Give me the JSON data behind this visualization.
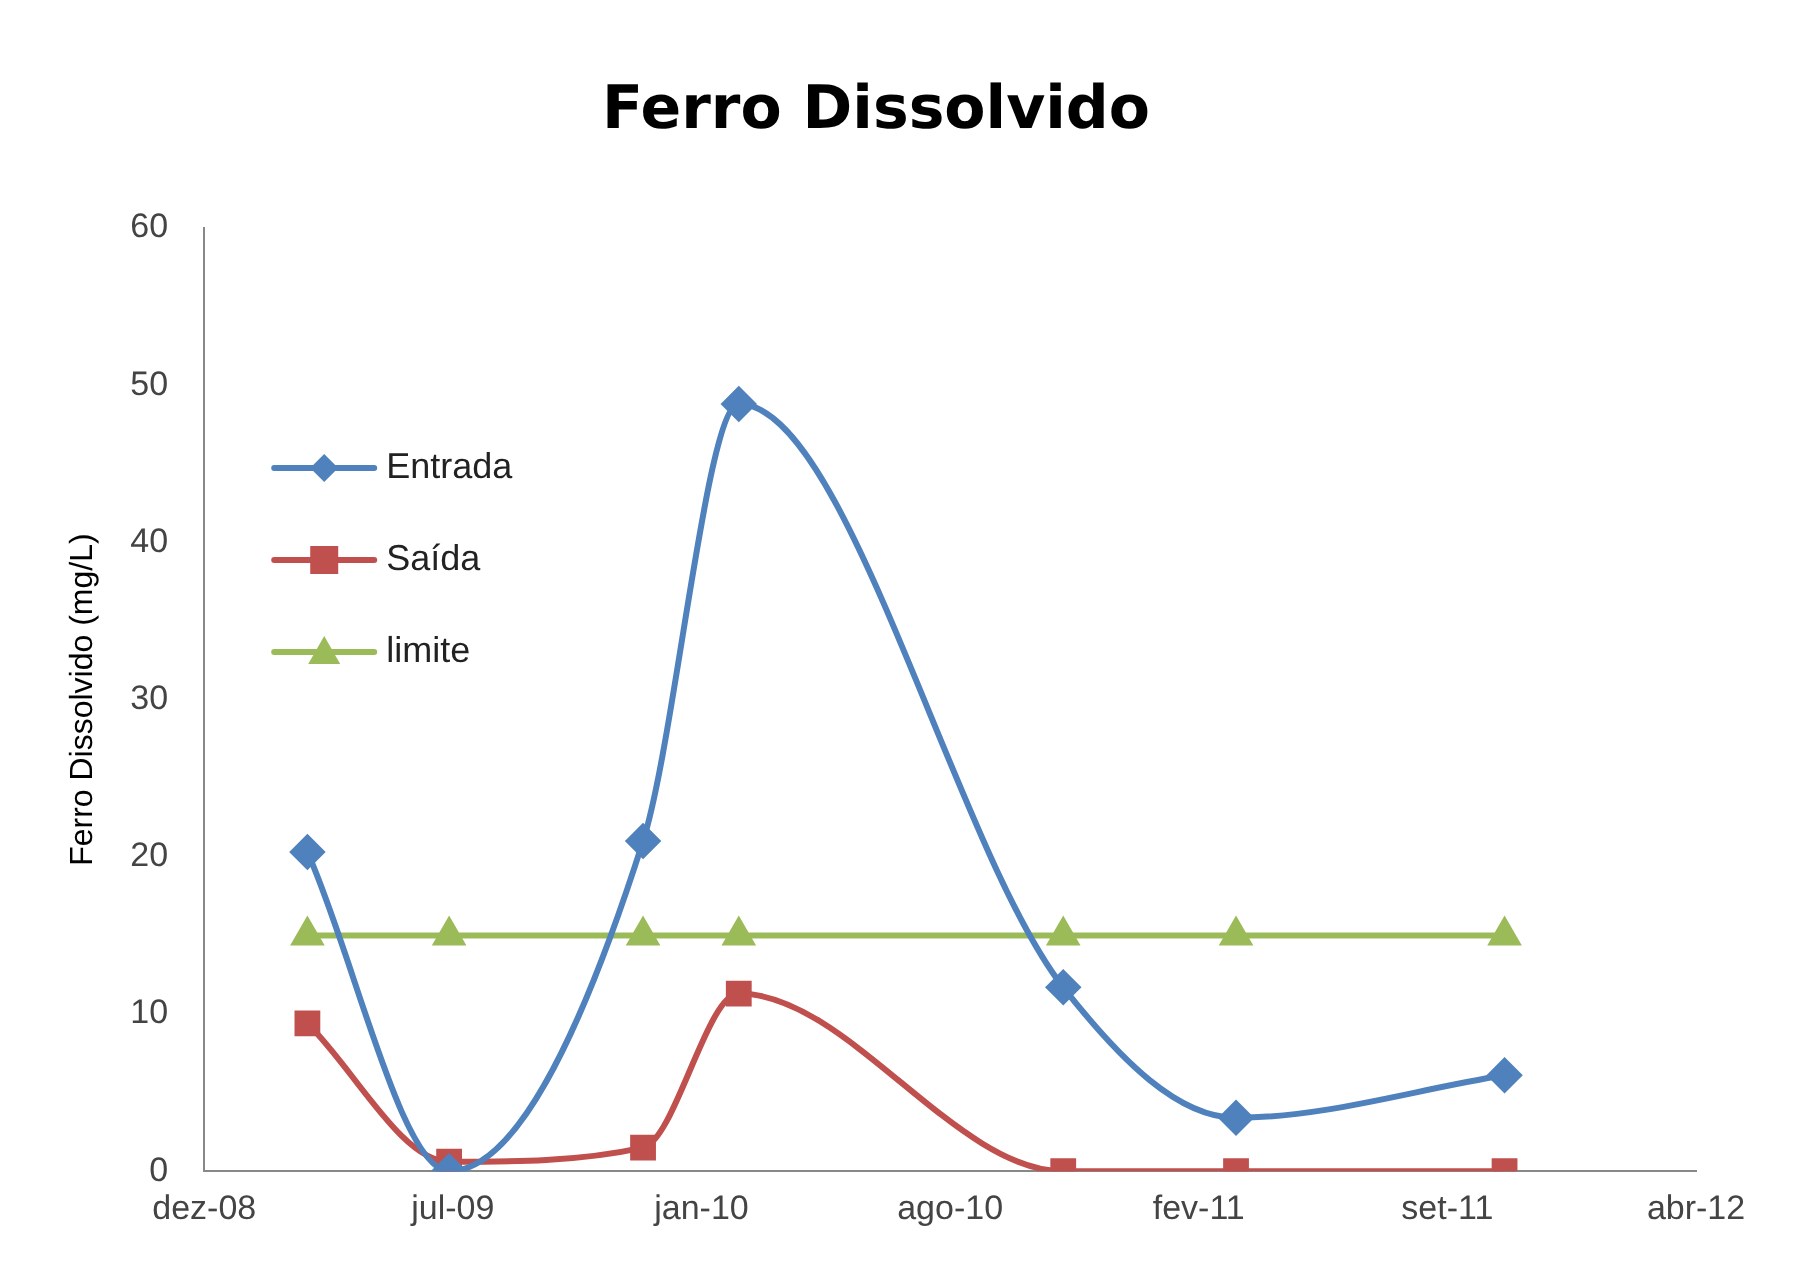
{
  "chart_data": {
    "type": "line",
    "title": "Ferro Dissolvido",
    "ylabel": "Ferro Dissolvido (mg/L)",
    "x": [
      "2009-03-13",
      "2009-07-05",
      "2009-12-08",
      "2010-02-23",
      "2010-11-11",
      "2011-03-30",
      "2011-11-01"
    ],
    "series": [
      {
        "name": "Entrada",
        "color": "#4f81bd",
        "marker": "diamond",
        "values": [
          20.3,
          0,
          21,
          48.8,
          11.7,
          3.4,
          6.1
        ]
      },
      {
        "name": "Saída",
        "color": "#c0504d",
        "marker": "square",
        "values": [
          9.4,
          0.6,
          1.5,
          11.3,
          0,
          0,
          0
        ]
      },
      {
        "name": "limite",
        "color": "#9bbb59",
        "marker": "triangle",
        "values": [
          15,
          15,
          15,
          15,
          15,
          15,
          15
        ]
      }
    ],
    "xlim": [
      "2008-12-20",
      "2012-04-03"
    ],
    "xticks": [
      {
        "value": "2008-12-20",
        "label": "dez-08"
      },
      {
        "value": "2009-07-08",
        "label": "jul-09"
      },
      {
        "value": "2010-01-24",
        "label": "jan-10"
      },
      {
        "value": "2010-08-12",
        "label": "ago-10"
      },
      {
        "value": "2011-02-28",
        "label": "fev-11"
      },
      {
        "value": "2011-09-16",
        "label": "set-11"
      },
      {
        "value": "2012-04-03",
        "label": "abr-12"
      }
    ],
    "ylim": [
      0,
      60
    ],
    "yticks": [
      0,
      10,
      20,
      30,
      40,
      50,
      60
    ],
    "grid": false,
    "legend": "top left"
  }
}
